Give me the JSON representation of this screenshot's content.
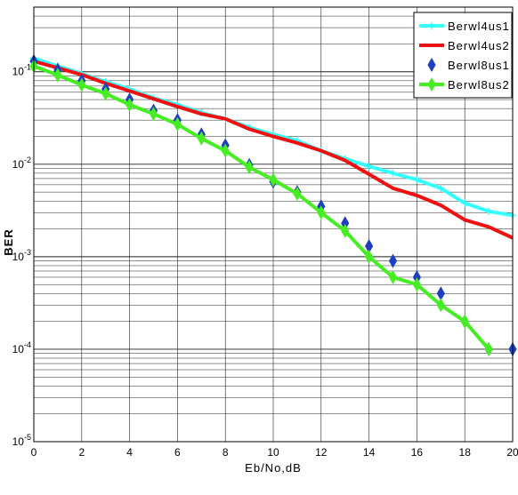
{
  "chart_data": {
    "type": "line",
    "title": "",
    "xlabel": "Eb/No,dB",
    "ylabel": "BER",
    "xlim": [
      0,
      20
    ],
    "ylim": [
      1e-05,
      0.5
    ],
    "yscale": "log",
    "grid": true,
    "legend_position": "top-right",
    "x_ticks": [
      "0",
      "2",
      "4",
      "6",
      "8",
      "10",
      "12",
      "14",
      "16",
      "18",
      "20"
    ],
    "y_ticks": [
      {
        "value": 0.1,
        "base": "10",
        "exp": "-1"
      },
      {
        "value": 0.01,
        "base": "10",
        "exp": "-2"
      },
      {
        "value": 0.001,
        "base": "10",
        "exp": "-3"
      },
      {
        "value": 0.0001,
        "base": "10",
        "exp": "-4"
      },
      {
        "value": 1e-05,
        "base": "10",
        "exp": "-5"
      }
    ],
    "series": [
      {
        "name": "Berwl4us1",
        "color": "#33ffff",
        "marker": "plus",
        "line": true,
        "x": [
          0,
          1,
          2,
          3,
          4,
          5,
          6,
          7,
          8,
          9,
          10,
          11,
          12,
          13,
          14,
          15,
          16,
          17,
          18,
          19,
          20
        ],
        "y": [
          0.14,
          0.115,
          0.095,
          0.078,
          0.065,
          0.052,
          0.044,
          0.036,
          0.031,
          0.025,
          0.021,
          0.018,
          0.014,
          0.0115,
          0.0095,
          0.008,
          0.0068,
          0.0055,
          0.0038,
          0.0031,
          0.0028
        ]
      },
      {
        "name": "Berwl4us2",
        "color": "#ee1111",
        "marker": "none",
        "line": true,
        "x": [
          0,
          1,
          2,
          3,
          4,
          5,
          6,
          7,
          8,
          9,
          10,
          11,
          12,
          13,
          14,
          15,
          16,
          17,
          18,
          19,
          20
        ],
        "y": [
          0.13,
          0.11,
          0.093,
          0.075,
          0.062,
          0.051,
          0.042,
          0.035,
          0.031,
          0.024,
          0.02,
          0.017,
          0.014,
          0.011,
          0.0078,
          0.0055,
          0.0046,
          0.0036,
          0.0025,
          0.0021,
          0.0016
        ]
      },
      {
        "name": "Berwl8us1",
        "color": "#1f3fbf",
        "marker": "diamond",
        "line": false,
        "x": [
          0,
          1,
          2,
          3,
          4,
          5,
          6,
          7,
          8,
          9,
          10,
          11,
          12,
          13,
          14,
          15,
          16,
          17,
          18,
          19,
          20
        ],
        "y": [
          0.13,
          0.105,
          0.08,
          0.065,
          0.05,
          0.038,
          0.03,
          0.021,
          0.016,
          0.0098,
          0.0065,
          0.005,
          0.0035,
          0.0023,
          0.0013,
          0.0009,
          0.0006,
          0.0004,
          0.0002,
          0.0001,
          0.0001
        ]
      },
      {
        "name": "Berwl8us2",
        "color": "#44ee22",
        "marker": "diamond",
        "line": true,
        "x": [
          0,
          1,
          2,
          3,
          4,
          5,
          6,
          7,
          8,
          9,
          10,
          11,
          12,
          13,
          14,
          15,
          16,
          17,
          18,
          19
        ],
        "y": [
          0.115,
          0.092,
          0.072,
          0.058,
          0.044,
          0.035,
          0.027,
          0.019,
          0.014,
          0.0093,
          0.0068,
          0.0048,
          0.003,
          0.0019,
          0.001,
          0.0006,
          0.0005,
          0.0003,
          0.0002,
          0.0001
        ]
      }
    ]
  }
}
